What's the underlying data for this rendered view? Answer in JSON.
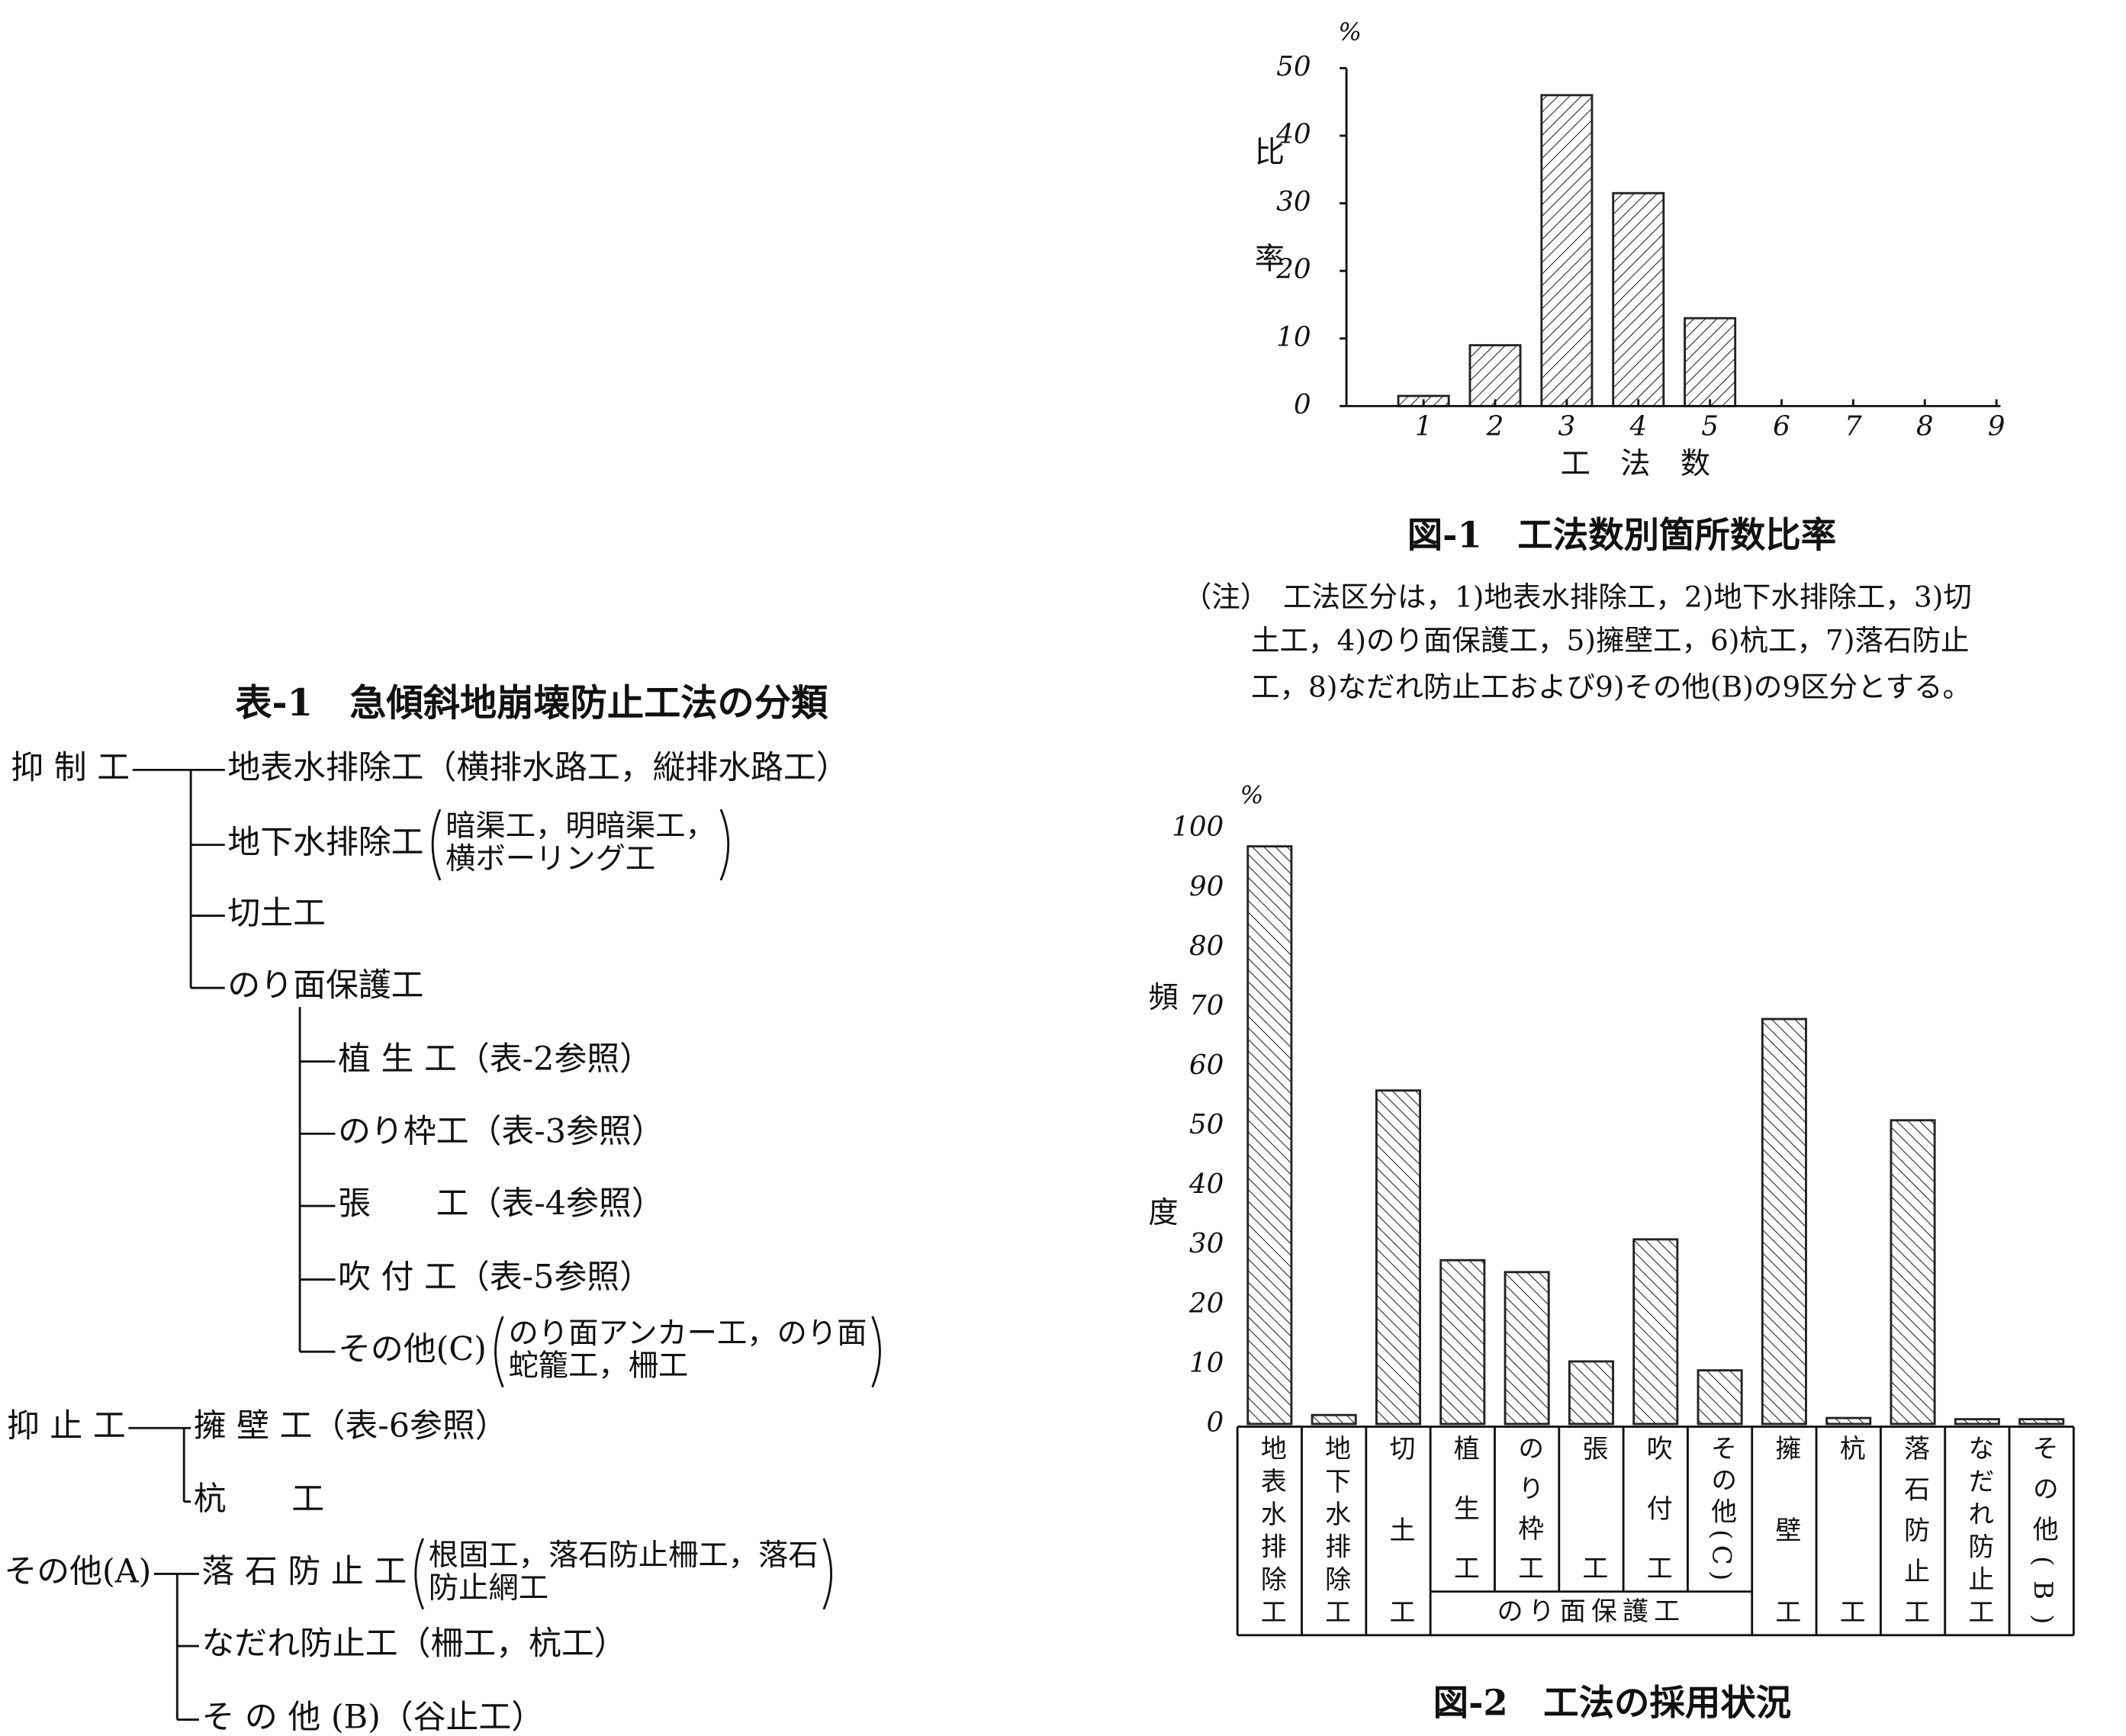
{
  "table": {
    "title": "表-1　急傾斜地崩壊防止工法の分類",
    "groups": [
      {
        "label": "抑 制 工",
        "items": [
          {
            "name": "地表水排除工",
            "note": "（横排水路工，縦排水路工）"
          },
          {
            "name": "地下水排除工",
            "note": [
              "暗渠工，明暗渠工，",
              "横ボーリング工"
            ]
          },
          {
            "name": "切土工"
          },
          {
            "name": "のり面保護工",
            "children": [
              {
                "name": "植 生 工",
                "note": "（表-2参照）"
              },
              {
                "name": "のり枠工",
                "note": "（表-3参照）"
              },
              {
                "name": "張　　工",
                "note": "（表-4参照）"
              },
              {
                "name": "吹 付 工",
                "note": "（表-5参照）"
              },
              {
                "name": "その他(C)",
                "note": [
                  "のり面アンカー工，のり面",
                  "蛇籠工，柵工"
                ]
              }
            ]
          }
        ]
      },
      {
        "label": "抑 止 工",
        "items": [
          {
            "name": "擁 壁 工",
            "note": "（表-6参照）"
          },
          {
            "name": "杭　　工"
          }
        ]
      },
      {
        "label": "その他(A)",
        "items": [
          {
            "name": "落 石 防 止 工",
            "note": [
              "根固工，落石防止柵工，落石",
              "防止網工"
            ]
          },
          {
            "name": "なだれ防止工",
            "note": "（柵工，杭工）"
          },
          {
            "name": "そ の 他 (B)",
            "note": "（谷止工）"
          }
        ]
      }
    ]
  },
  "chart_data": [
    {
      "type": "bar",
      "title": "図-1　工法数別箇所数比率",
      "unit": "%",
      "y_label": "比率",
      "x_label": "工　法　数",
      "categories": [
        "1",
        "2",
        "3",
        "4",
        "5",
        "6",
        "7",
        "8",
        "9"
      ],
      "values": [
        1.5,
        9,
        46,
        31.5,
        13,
        0,
        0,
        0,
        0
      ],
      "ylim": [
        0,
        50
      ],
      "yticks": [
        0,
        10,
        20,
        30,
        40,
        50
      ],
      "color": "#222",
      "note": [
        "（注）　工法区分は，1)地表水排除工，2)地下水排除工，3)切",
        "土工，4)のり面保護工，5)擁壁工，6)杭工，7)落石防止",
        "工，8)なだれ防止工および9)その他(B)の9区分とする。"
      ]
    },
    {
      "type": "bar",
      "title": "図-2　工法の採用状況",
      "unit": "%",
      "y_label": "頻度",
      "group_label": "のり面保護工",
      "categories": [
        "地表水排除工",
        "地下水排除工",
        "切土工",
        "植生工",
        "のり枠工",
        "張工",
        "吹付工",
        "その他(C)",
        "擁壁工",
        "杭工",
        "落石防止工",
        "なだれ防止工",
        "その他(B)"
      ],
      "values": [
        97,
        1.5,
        56,
        27.5,
        25.5,
        10.5,
        31,
        9,
        68,
        1,
        51,
        0.8,
        0.8
      ],
      "ylim": [
        0,
        100
      ],
      "yticks": [
        0,
        10,
        20,
        30,
        40,
        50,
        60,
        70,
        80,
        90,
        100
      ],
      "color": "#222"
    }
  ]
}
